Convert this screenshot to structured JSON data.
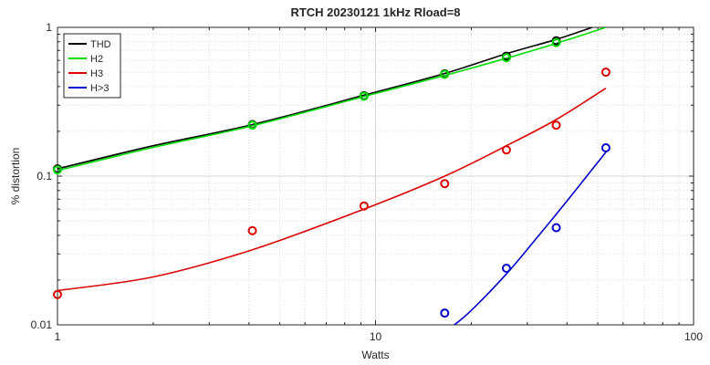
{
  "chart_data": {
    "type": "scatter",
    "title": "RTCH 20230121 1kHz Rload=8",
    "xlabel": "Watts",
    "ylabel": "% distortion",
    "xscale": "log",
    "yscale": "log",
    "xlim": [
      1,
      100
    ],
    "ylim": [
      0.01,
      1
    ],
    "grid": true,
    "legend_position": "top-left",
    "xticks": [
      {
        "value": 1,
        "label": "1"
      },
      {
        "value": 10,
        "label": "10"
      },
      {
        "value": 100,
        "label": "100"
      }
    ],
    "yticks": [
      {
        "value": 0.01,
        "label": "0.01"
      },
      {
        "value": 0.1,
        "label": "0.1"
      },
      {
        "value": 1,
        "label": "1"
      }
    ],
    "series": [
      {
        "name": "THD",
        "color": "#000000",
        "points": [
          [
            1.0,
            0.112
          ],
          [
            4.1,
            0.222
          ],
          [
            9.2,
            0.347
          ],
          [
            16.5,
            0.487
          ],
          [
            25.8,
            0.64
          ],
          [
            37.0,
            0.813
          ]
        ],
        "fit": [
          [
            1.0,
            0.112
          ],
          [
            2.0,
            0.16
          ],
          [
            4.1,
            0.222
          ],
          [
            9.2,
            0.35
          ],
          [
            16.5,
            0.49
          ],
          [
            25.8,
            0.665
          ],
          [
            37.0,
            0.83
          ],
          [
            48.0,
            1.0
          ]
        ]
      },
      {
        "name": "H2",
        "color": "#00dd00",
        "points": [
          [
            1.0,
            0.11
          ],
          [
            4.1,
            0.22
          ],
          [
            9.2,
            0.344
          ],
          [
            16.5,
            0.483
          ],
          [
            25.8,
            0.625
          ],
          [
            37.0,
            0.79
          ]
        ],
        "fit": [
          [
            1.0,
            0.109
          ],
          [
            2.0,
            0.156
          ],
          [
            4.1,
            0.218
          ],
          [
            9.2,
            0.343
          ],
          [
            16.5,
            0.475
          ],
          [
            25.8,
            0.62
          ],
          [
            37.0,
            0.78
          ],
          [
            53.0,
            1.0
          ]
        ]
      },
      {
        "name": "H3",
        "color": "#dd0000",
        "points": [
          [
            1.0,
            0.016
          ],
          [
            4.1,
            0.043
          ],
          [
            9.2,
            0.063
          ],
          [
            16.5,
            0.089
          ],
          [
            25.8,
            0.15
          ],
          [
            37.0,
            0.22
          ],
          [
            53.0,
            0.5
          ]
        ],
        "fit": [
          [
            1.0,
            0.017
          ],
          [
            2.0,
            0.021
          ],
          [
            4.1,
            0.032
          ],
          [
            9.2,
            0.06
          ],
          [
            16.5,
            0.1
          ],
          [
            25.8,
            0.16
          ],
          [
            37.0,
            0.24
          ],
          [
            53.0,
            0.39
          ]
        ]
      },
      {
        "name": "H>3",
        "color": "#0000cc",
        "points": [
          [
            16.5,
            0.012
          ],
          [
            25.8,
            0.024
          ],
          [
            37.0,
            0.045
          ],
          [
            53.0,
            0.155
          ]
        ],
        "fit": [
          [
            17.5,
            0.0098
          ],
          [
            20.0,
            0.0125
          ],
          [
            25.8,
            0.022
          ],
          [
            32.0,
            0.038
          ],
          [
            40.0,
            0.068
          ],
          [
            53.0,
            0.145
          ]
        ]
      }
    ]
  }
}
